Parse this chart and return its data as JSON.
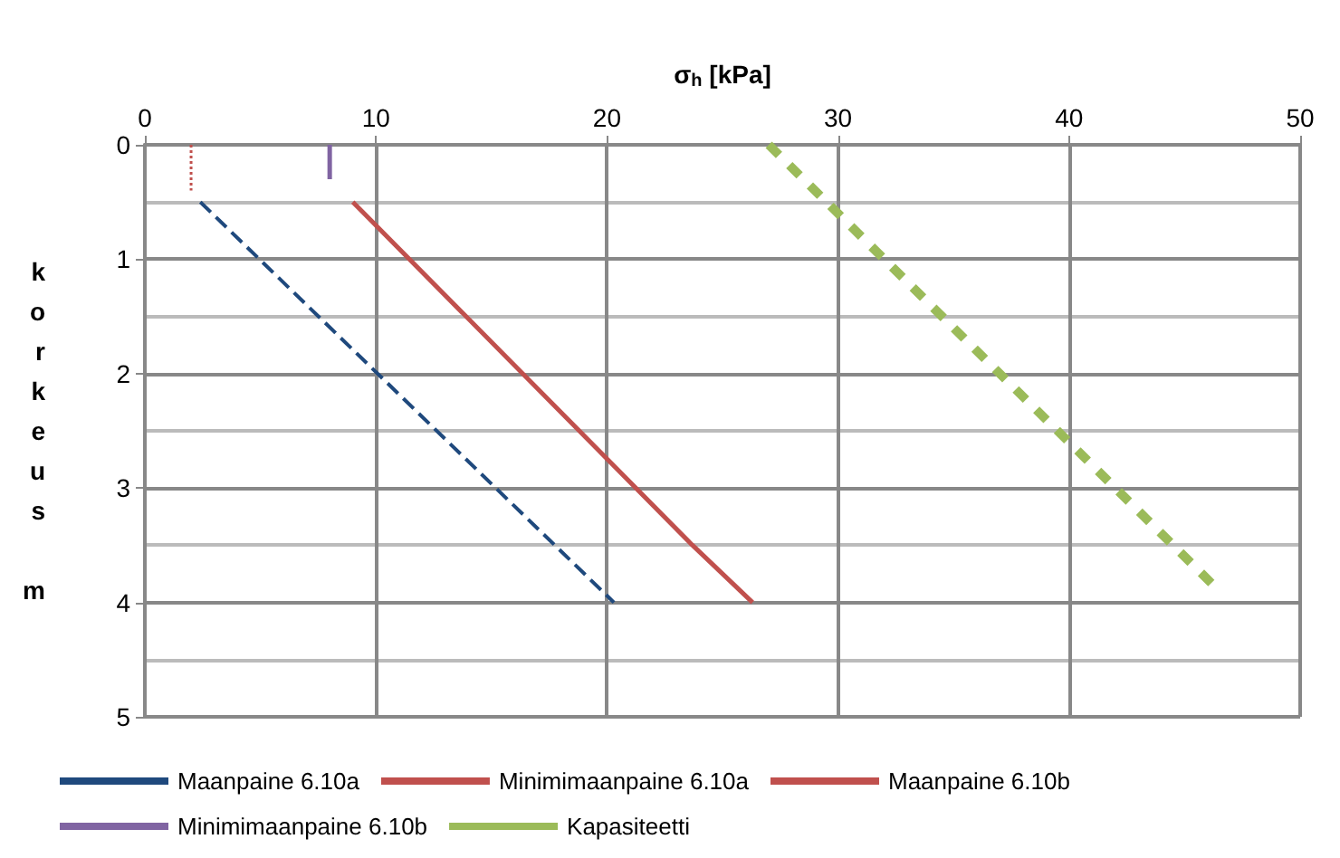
{
  "chart_data": {
    "type": "line",
    "xlabel": "σ$_{h}$ [kPa]",
    "ylabel": "korkeus m",
    "xlim": [
      0,
      50
    ],
    "xticks": [
      0,
      10,
      20,
      30,
      40,
      50
    ],
    "ylim": [
      5,
      0
    ],
    "yticks": [
      0,
      1,
      2,
      3,
      4,
      5
    ],
    "grid": true,
    "legend": "bottom",
    "marker": "none",
    "series": [
      {
        "name": "Maanpaine 6.10a",
        "color": "#1f497d",
        "line_style": "dashed",
        "x": [
          2.4,
          20.3
        ],
        "values": [
          0.5,
          4.0
        ]
      },
      {
        "name": "Minimimaanpaine 6.10a",
        "color": "#c0504d",
        "line_style": "dotted",
        "x": [
          2.0,
          2.0
        ],
        "values": [
          0,
          0.4
        ]
      },
      {
        "name": "Maanpaine 6.10b",
        "color": "#c0504d",
        "line_style": "solid",
        "x": [
          9.0,
          23.7,
          26.3
        ],
        "values": [
          0.5,
          3.5,
          4.0
        ]
      },
      {
        "name": "Minimimaanpaine 6.10b",
        "color": "#8064a2",
        "line_style": "solid",
        "x": [
          8.0,
          8.0
        ],
        "values": [
          0,
          0.3
        ]
      },
      {
        "name": "Kapasiteetti",
        "color": "#9bbb59",
        "line_style": "dashed",
        "x": [
          27.0,
          46.5
        ],
        "values": [
          0,
          3.9
        ]
      }
    ]
  }
}
